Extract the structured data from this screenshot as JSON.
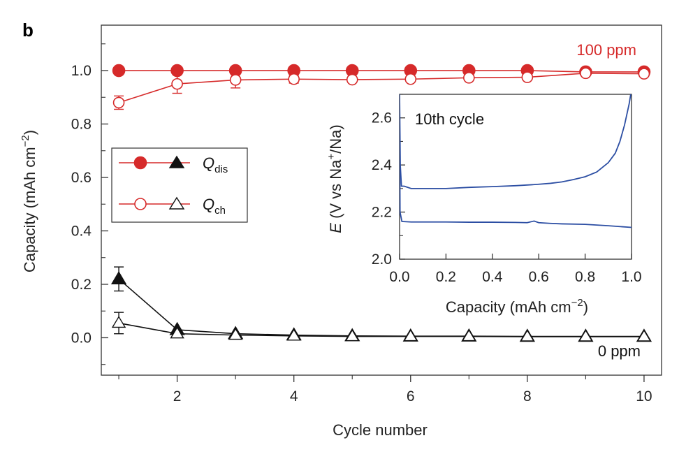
{
  "panel_label": "b",
  "colors": {
    "red": "#d62a2a",
    "black": "#111111",
    "blue": "#2c4ea3"
  },
  "chart_data": [
    {
      "type": "line",
      "xlabel": "Cycle number",
      "ylabel": "Capacity (mAh cm",
      "ylabel_sup": "−2",
      "ylabel_close": ")",
      "xlim": [
        0.7,
        10.3
      ],
      "ylim": [
        -0.14,
        1.17
      ],
      "x_ticks": [
        "2",
        "4",
        "6",
        "8",
        "10"
      ],
      "y_ticks": [
        "0.0",
        "0.2",
        "0.4",
        "0.6",
        "0.8",
        "1.0"
      ],
      "annotations": {
        "high": "100 ppm",
        "low": "0 ppm"
      },
      "legend": {
        "placement": "left",
        "entries": [
          {
            "sym": "Q",
            "sub": "dis"
          },
          {
            "sym": "Q",
            "sub": "ch"
          }
        ]
      },
      "x": [
        1,
        2,
        3,
        4,
        5,
        6,
        7,
        8,
        9,
        10
      ],
      "series": [
        {
          "group": "100 ppm",
          "kind": "dis",
          "marker": "circle-filled",
          "values": [
            1.0,
            1.0,
            1.0,
            1.0,
            1.0,
            1.0,
            1.0,
            1.0,
            0.995,
            0.995
          ],
          "err": [
            0,
            0,
            0,
            0,
            0,
            0,
            0,
            0,
            0,
            0
          ]
        },
        {
          "group": "100 ppm",
          "kind": "ch",
          "marker": "circle-open",
          "values": [
            0.88,
            0.95,
            0.965,
            0.968,
            0.966,
            0.968,
            0.973,
            0.975,
            0.99,
            0.988
          ],
          "err": [
            0.025,
            0.035,
            0.03,
            0.015,
            0,
            0,
            0,
            0,
            0,
            0
          ]
        },
        {
          "group": "0 ppm",
          "kind": "dis",
          "marker": "triangle-filled",
          "values": [
            0.22,
            0.03,
            0.015,
            0.01,
            0.007,
            0.006,
            0.006,
            0.005,
            0.005,
            0.005
          ],
          "err": [
            0.045,
            0,
            0,
            0,
            0,
            0,
            0,
            0,
            0,
            0
          ]
        },
        {
          "group": "0 ppm",
          "kind": "ch",
          "marker": "triangle-open",
          "values": [
            0.055,
            0.015,
            0.01,
            0.007,
            0.005,
            0.005,
            0.005,
            0.004,
            0.004,
            0.004
          ],
          "err": [
            0.04,
            0,
            0,
            0,
            0,
            0,
            0,
            0,
            0,
            0
          ]
        }
      ]
    },
    {
      "type": "line",
      "annotation": "10th cycle",
      "xlabel": "Capacity (mAh cm",
      "xlabel_sup": "−2",
      "xlabel_close": ")",
      "ylabel_sym": "E",
      "ylabel_mid": " (V vs Na",
      "ylabel_sup": "+",
      "ylabel_close": "/Na)",
      "xlim": [
        0.0,
        1.0
      ],
      "ylim": [
        2.0,
        2.7
      ],
      "x_ticks": [
        "0.0",
        "0.2",
        "0.4",
        "0.6",
        "0.8",
        "1.0"
      ],
      "y_ticks": [
        "2.0",
        "2.2",
        "2.4",
        "2.6"
      ],
      "series": [
        {
          "kind": "discharge-upper",
          "x": [
            0.0,
            0.003,
            0.008,
            0.02,
            0.05,
            0.1,
            0.2,
            0.3,
            0.4,
            0.5,
            0.6,
            0.65,
            0.7,
            0.75,
            0.8,
            0.85,
            0.9,
            0.93,
            0.95,
            0.97,
            0.99,
            1.0
          ],
          "y": [
            2.7,
            2.4,
            2.31,
            2.31,
            2.3,
            2.3,
            2.3,
            2.305,
            2.308,
            2.312,
            2.318,
            2.322,
            2.328,
            2.338,
            2.35,
            2.37,
            2.41,
            2.45,
            2.5,
            2.57,
            2.66,
            2.72
          ]
        },
        {
          "kind": "charge-lower",
          "x": [
            0.0,
            0.002,
            0.01,
            0.05,
            0.1,
            0.2,
            0.3,
            0.4,
            0.5,
            0.55,
            0.58,
            0.6,
            0.65,
            0.7,
            0.8,
            0.9,
            1.0
          ],
          "y": [
            2.6,
            2.2,
            2.16,
            2.158,
            2.158,
            2.158,
            2.157,
            2.157,
            2.156,
            2.155,
            2.162,
            2.155,
            2.152,
            2.15,
            2.148,
            2.142,
            2.135
          ]
        }
      ]
    }
  ]
}
